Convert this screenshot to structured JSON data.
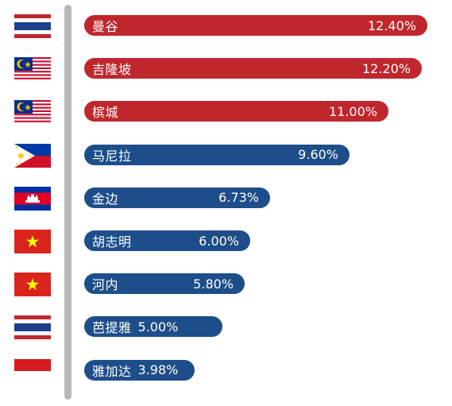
{
  "chart_data": {
    "type": "bar",
    "orientation": "horizontal",
    "categories": [
      "曼谷",
      "吉隆坡",
      "槟城",
      "马尼拉",
      "金边",
      "胡志明",
      "河内",
      "芭提雅",
      "雅加达"
    ],
    "values": [
      12.4,
      12.2,
      11.0,
      9.6,
      6.73,
      6.0,
      5.8,
      5.0,
      3.98
    ],
    "value_labels": [
      "12.40%",
      "12.20%",
      "11.00%",
      "9.60%",
      "6.73%",
      "6.00%",
      "5.80%",
      "5.00%",
      "3.98%"
    ],
    "flags": [
      "thailand-flag",
      "malaysia-flag",
      "malaysia-flag",
      "philippines-flag",
      "cambodia-flag",
      "vietnam-flag",
      "vietnam-flag",
      "thailand-flag",
      "indonesia-flag"
    ],
    "bar_colors": [
      "#c0272d",
      "#c0272d",
      "#c0272d",
      "#1d4e89",
      "#1d4e89",
      "#1d4e89",
      "#1d4e89",
      "#1d4e89",
      "#1d4e89"
    ],
    "title": "",
    "xlabel": "",
    "ylabel": "",
    "grid": false,
    "legend": "none"
  },
  "colors": {
    "red": "#c0272d",
    "blue": "#1d4e89",
    "divider": "#b7b7b9"
  }
}
